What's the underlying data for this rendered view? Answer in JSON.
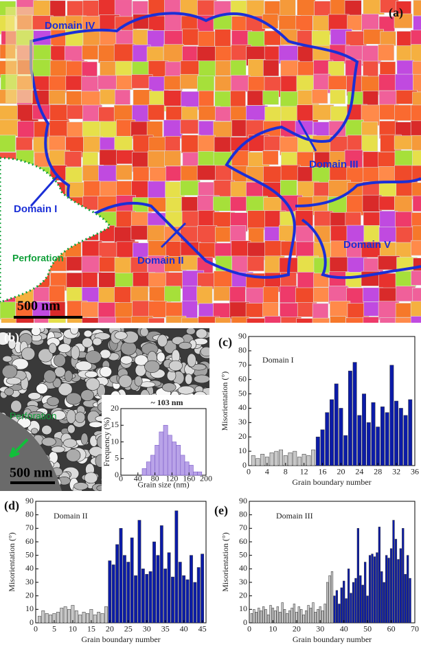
{
  "map": {
    "label": "(a)",
    "domains": [
      "Domain I",
      "Domain II",
      "Domain III",
      "Domain IV",
      "Domain V"
    ],
    "perforation": "Perforation",
    "scale_bar": "500 nm"
  },
  "micrograph": {
    "label": "(b)",
    "perforation": "Perforation",
    "scale_bar": "500 nm"
  },
  "chart_data": [
    {
      "type": "histogram",
      "annotation": "~ 103 nm",
      "xlabel": "Grain size (nm)",
      "ylabel": "Frequency (%)",
      "color": "#b9a3e8",
      "bins": [
        50,
        60,
        70,
        80,
        90,
        100,
        110,
        120,
        130,
        140,
        150,
        160,
        170,
        180,
        190
      ],
      "values": [
        2,
        4,
        6,
        9,
        13,
        15,
        12,
        10,
        9,
        6,
        4,
        3,
        1,
        1
      ],
      "xlim": [
        0,
        200
      ],
      "xticks": [
        0,
        40,
        80,
        120,
        160,
        200
      ],
      "ylim": [
        0,
        20
      ],
      "yticks": [
        0,
        5,
        10,
        15,
        20
      ]
    },
    {
      "type": "bar",
      "panel": "(c)",
      "title": "Domain I",
      "xlabel": "Grain boundary number",
      "ylabel": "Misorientation (°)",
      "xlim": [
        0,
        36
      ],
      "xticks": [
        0,
        4,
        8,
        12,
        16,
        20,
        24,
        28,
        32,
        36
      ],
      "ylim": [
        0,
        90
      ],
      "yticks": [
        0,
        10,
        20,
        30,
        40,
        50,
        60,
        70,
        80,
        90
      ],
      "series": [
        {
          "color": "#c8c8c8",
          "x": [
            1,
            2,
            3,
            4,
            5,
            6,
            7,
            8,
            9,
            10,
            11,
            12,
            13,
            14
          ],
          "values": [
            7,
            5,
            8,
            6,
            9,
            10,
            11,
            7,
            9,
            10,
            6,
            8,
            7,
            11
          ]
        },
        {
          "color": "#0b1ba8",
          "x": [
            15,
            16,
            17,
            18,
            19,
            20,
            21,
            22,
            23,
            24,
            25,
            26,
            27,
            28,
            29,
            30,
            31,
            32,
            33,
            34,
            35
          ],
          "values": [
            20,
            25,
            37,
            46,
            57,
            40,
            21,
            66,
            72,
            35,
            50,
            30,
            44,
            27,
            41,
            37,
            70,
            45,
            40,
            35,
            46
          ]
        }
      ]
    },
    {
      "type": "bar",
      "panel": "(d)",
      "title": "Domain II",
      "xlabel": "Grain boundary number",
      "ylabel": "Misorientation (°)",
      "xlim": [
        0,
        46
      ],
      "xticks": [
        0,
        5,
        10,
        15,
        20,
        25,
        30,
        35,
        40,
        45
      ],
      "ylim": [
        0,
        90
      ],
      "yticks": [
        0,
        10,
        20,
        30,
        40,
        50,
        60,
        70,
        80,
        90
      ],
      "series": [
        {
          "color": "#c8c8c8",
          "x": [
            1,
            2,
            3,
            4,
            5,
            6,
            7,
            8,
            9,
            10,
            11,
            12,
            13,
            14,
            15,
            16,
            17,
            18,
            19
          ],
          "values": [
            5,
            9,
            7,
            6,
            7,
            8,
            11,
            12,
            10,
            13,
            9,
            6,
            8,
            7,
            10,
            6,
            8,
            7,
            12
          ]
        },
        {
          "color": "#0b1ba8",
          "x": [
            20,
            21,
            22,
            23,
            24,
            25,
            26,
            27,
            28,
            29,
            30,
            31,
            32,
            33,
            34,
            35,
            36,
            37,
            38,
            39,
            40,
            41,
            42,
            43,
            44,
            45
          ],
          "values": [
            46,
            43,
            58,
            70,
            50,
            45,
            63,
            35,
            76,
            40,
            36,
            38,
            60,
            50,
            72,
            40,
            52,
            34,
            83,
            45,
            35,
            32,
            50,
            30,
            41,
            51
          ]
        }
      ]
    },
    {
      "type": "bar",
      "panel": "(e)",
      "title": "Domain III",
      "xlabel": "Grain boundary number",
      "ylabel": "Misorientation (°)",
      "xlim": [
        0,
        70
      ],
      "xticks": [
        0,
        10,
        20,
        30,
        40,
        50,
        60,
        70
      ],
      "ylim": [
        0,
        90
      ],
      "yticks": [
        0,
        10,
        20,
        30,
        40,
        50,
        60,
        70,
        80,
        90
      ],
      "series": [
        {
          "color": "#c8c8c8",
          "x": [
            1,
            2,
            3,
            4,
            5,
            6,
            7,
            8,
            9,
            10,
            11,
            12,
            13,
            14,
            15,
            16,
            17,
            18,
            19,
            20,
            21,
            22,
            23,
            24,
            25,
            26,
            27,
            28,
            29,
            30,
            31,
            32,
            33,
            34,
            35
          ],
          "values": [
            7,
            10,
            8,
            11,
            9,
            12,
            10,
            6,
            13,
            11,
            9,
            12,
            8,
            15,
            10,
            7,
            9,
            11,
            14,
            8,
            12,
            10,
            6,
            9,
            13,
            11,
            15,
            8,
            10,
            12,
            9,
            14,
            30,
            35,
            38
          ]
        },
        {
          "color": "#0b1ba8",
          "x": [
            36,
            37,
            38,
            39,
            40,
            41,
            42,
            43,
            44,
            45,
            46,
            47,
            48,
            49,
            50,
            51,
            52,
            53,
            54,
            55,
            56,
            57,
            58,
            59,
            60,
            61,
            62,
            63,
            64,
            65,
            66,
            67,
            68
          ],
          "values": [
            20,
            24,
            14,
            26,
            31,
            18,
            40,
            22,
            30,
            33,
            70,
            35,
            28,
            45,
            20,
            50,
            51,
            49,
            52,
            71,
            38,
            30,
            50,
            48,
            55,
            76,
            62,
            47,
            55,
            70,
            36,
            50,
            33
          ]
        }
      ]
    }
  ]
}
